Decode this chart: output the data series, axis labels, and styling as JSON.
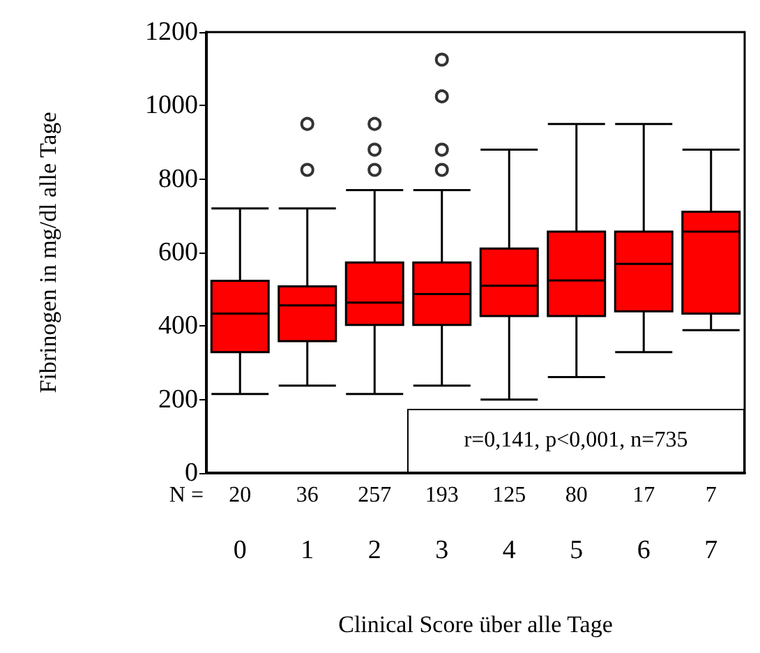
{
  "chart_data": {
    "type": "box",
    "xlabel": "Clinical Score über alle Tage",
    "ylabel": "Fibrinogen in mg/dl alle Tage",
    "categories": [
      "0",
      "1",
      "2",
      "3",
      "4",
      "5",
      "6",
      "7"
    ],
    "color": "#ff0000",
    "boxes": [
      {
        "low": 215,
        "q1": 329,
        "median": 434,
        "q3": 523,
        "high": 720
      },
      {
        "low": 238,
        "q1": 359,
        "median": 456,
        "q3": 508,
        "high": 720,
        "outliers": [
          825,
          950
        ]
      },
      {
        "low": 215,
        "q1": 403,
        "median": 464,
        "q3": 573,
        "high": 770,
        "outliers": [
          825,
          880,
          950
        ]
      },
      {
        "low": 238,
        "q1": 403,
        "median": 487,
        "q3": 573,
        "high": 770,
        "outliers": [
          825,
          880,
          1025,
          1125
        ]
      },
      {
        "low": 200,
        "q1": 427,
        "median": 510,
        "q3": 611,
        "high": 880
      },
      {
        "low": 261,
        "q1": 427,
        "median": 524,
        "q3": 657,
        "high": 950
      },
      {
        "low": 329,
        "q1": 440,
        "median": 569,
        "q3": 657,
        "high": 950
      },
      {
        "low": 389,
        "q1": 434,
        "median": 657,
        "q3": 711,
        "high": 880
      }
    ],
    "ylim": [
      0,
      1200
    ],
    "yticks": [
      0,
      200,
      400,
      600,
      800,
      1000,
      1200
    ],
    "grid": false,
    "annotations": [
      "N =",
      "r=0,141, p<0,001, n=735",
      "20",
      "36",
      "257",
      "193",
      "125",
      "80",
      "17",
      "7"
    ]
  }
}
